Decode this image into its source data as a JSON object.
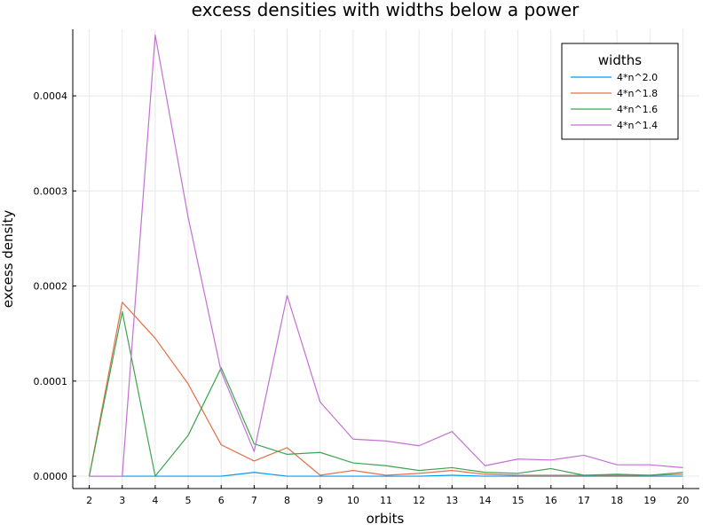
{
  "chart_data": {
    "type": "line",
    "title": "excess densities with widths below a power",
    "xlabel": "orbits",
    "ylabel": "excess density",
    "x": [
      2,
      3,
      4,
      5,
      6,
      7,
      8,
      9,
      10,
      11,
      12,
      13,
      14,
      15,
      16,
      17,
      18,
      19,
      20
    ],
    "xlim": [
      1.5,
      20.5
    ],
    "ylim": [
      -1.3e-05,
      0.00047
    ],
    "y_ticks": [
      0.0,
      0.0001,
      0.0002,
      0.0003,
      0.0004
    ],
    "y_tick_labels": [
      "0.0000",
      "0.0001",
      "0.0002",
      "0.0003",
      "0.0004"
    ],
    "grid": true,
    "legend": {
      "title": "widths",
      "position": "top-right"
    },
    "series": [
      {
        "name": "4*n^2.0",
        "color": "#009AFA",
        "values": [
          0,
          0,
          0,
          0,
          0,
          4e-06,
          0,
          0,
          0,
          0,
          0,
          1e-06,
          0,
          0,
          0,
          0,
          0,
          0,
          0
        ]
      },
      {
        "name": "4*n^1.8",
        "color": "#E36F47",
        "values": [
          0,
          0.000183,
          0.000145,
          9.7e-05,
          3.3e-05,
          1.6e-05,
          3e-05,
          1e-06,
          6e-06,
          1e-06,
          3e-06,
          6e-06,
          2e-06,
          1e-06,
          1e-06,
          1e-06,
          1e-06,
          1e-06,
          2e-06
        ]
      },
      {
        "name": "4*n^1.6",
        "color": "#3EA44E",
        "values": [
          0,
          0.000173,
          0,
          4.3e-05,
          0.000114,
          3.4e-05,
          2.3e-05,
          2.5e-05,
          1.4e-05,
          1.1e-05,
          6e-06,
          9e-06,
          4e-06,
          3e-06,
          8e-06,
          1e-06,
          2e-06,
          1e-06,
          4e-06
        ]
      },
      {
        "name": "4*n^1.4",
        "color": "#C271D2",
        "values": [
          0,
          0,
          0.000464,
          0.000272,
          0.00011,
          2.6e-05,
          0.00019,
          7.8e-05,
          3.9e-05,
          3.7e-05,
          3.2e-05,
          4.7e-05,
          1.1e-05,
          1.8e-05,
          1.7e-05,
          2.2e-05,
          1.2e-05,
          1.2e-05,
          9e-06
        ]
      }
    ]
  }
}
